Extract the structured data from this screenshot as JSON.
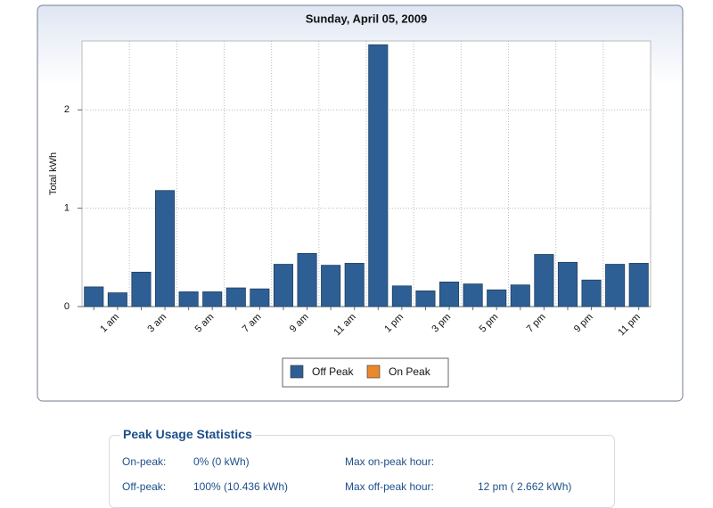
{
  "chart_data": {
    "type": "bar",
    "stacked": true,
    "title": "Sunday, April 05, 2009",
    "y_label": "Total kWh",
    "categories": [
      null,
      "1 am",
      null,
      "3 am",
      null,
      "5 am",
      null,
      "7 am",
      null,
      "9 am",
      null,
      "11 am",
      null,
      "1 pm",
      null,
      "3 pm",
      null,
      "5 pm",
      null,
      "7 pm",
      null,
      "9 pm",
      null,
      "11 pm"
    ],
    "series": [
      {
        "name": "Off Peak",
        "color": "#2e5f94",
        "values": [
          0.2,
          0.14,
          0.35,
          1.18,
          0.15,
          0.15,
          0.19,
          0.18,
          0.43,
          0.54,
          0.42,
          0.44,
          2.662,
          0.21,
          0.16,
          0.25,
          0.23,
          0.17,
          0.22,
          0.53,
          0.45,
          0.27,
          0.43,
          0.44
        ]
      },
      {
        "name": "On Peak",
        "color": "#e8892b",
        "values": [
          0,
          0,
          0,
          0,
          0,
          0,
          0,
          0,
          0,
          0,
          0,
          0,
          0,
          0,
          0,
          0,
          0,
          0,
          0,
          0,
          0,
          0,
          0,
          0
        ]
      }
    ],
    "ylim": [
      0,
      2.7
    ],
    "yticks": [
      0,
      1,
      2
    ],
    "grid": true,
    "legend": "bottom"
  },
  "stats": {
    "title": "Peak Usage Statistics",
    "rows": [
      {
        "label": "On-peak:",
        "value": "0% (0 kWh)",
        "max_label": "Max on-peak hour:"
      },
      {
        "label": "Off-peak:",
        "value": "100% (10.436 kWh)",
        "max_label": "Max off-peak hour:",
        "max_value": "12 pm ( 2.662 kWh)"
      }
    ]
  }
}
